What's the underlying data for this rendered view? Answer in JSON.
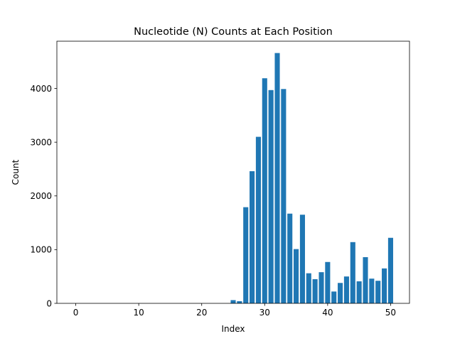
{
  "chart_data": {
    "type": "bar",
    "title": "Nucleotide (N) Counts at Each Position",
    "xlabel": "Index",
    "ylabel": "Count",
    "xlim": [
      -3,
      53
    ],
    "ylim": [
      0,
      4880
    ],
    "xticks": [
      0,
      10,
      20,
      30,
      40,
      50
    ],
    "yticks": [
      0,
      1000,
      2000,
      3000,
      4000
    ],
    "grid": false,
    "bar_color": "#1f77b4",
    "x": [
      0,
      1,
      2,
      3,
      4,
      5,
      6,
      7,
      8,
      9,
      10,
      11,
      12,
      13,
      14,
      15,
      16,
      17,
      18,
      19,
      20,
      21,
      22,
      23,
      24,
      25,
      26,
      27,
      28,
      29,
      30,
      31,
      32,
      33,
      34,
      35,
      36,
      37,
      38,
      39,
      40,
      41,
      42,
      43,
      44,
      45,
      46,
      47,
      48,
      49,
      50
    ],
    "values": [
      0,
      0,
      0,
      0,
      0,
      0,
      0,
      0,
      0,
      0,
      0,
      0,
      0,
      0,
      0,
      0,
      0,
      0,
      0,
      0,
      0,
      0,
      0,
      0,
      0,
      60,
      40,
      1790,
      2460,
      3100,
      4190,
      3970,
      4660,
      3990,
      1670,
      1010,
      1650,
      560,
      450,
      580,
      770,
      220,
      380,
      500,
      1140,
      410,
      860,
      460,
      420,
      650,
      1220
    ]
  }
}
